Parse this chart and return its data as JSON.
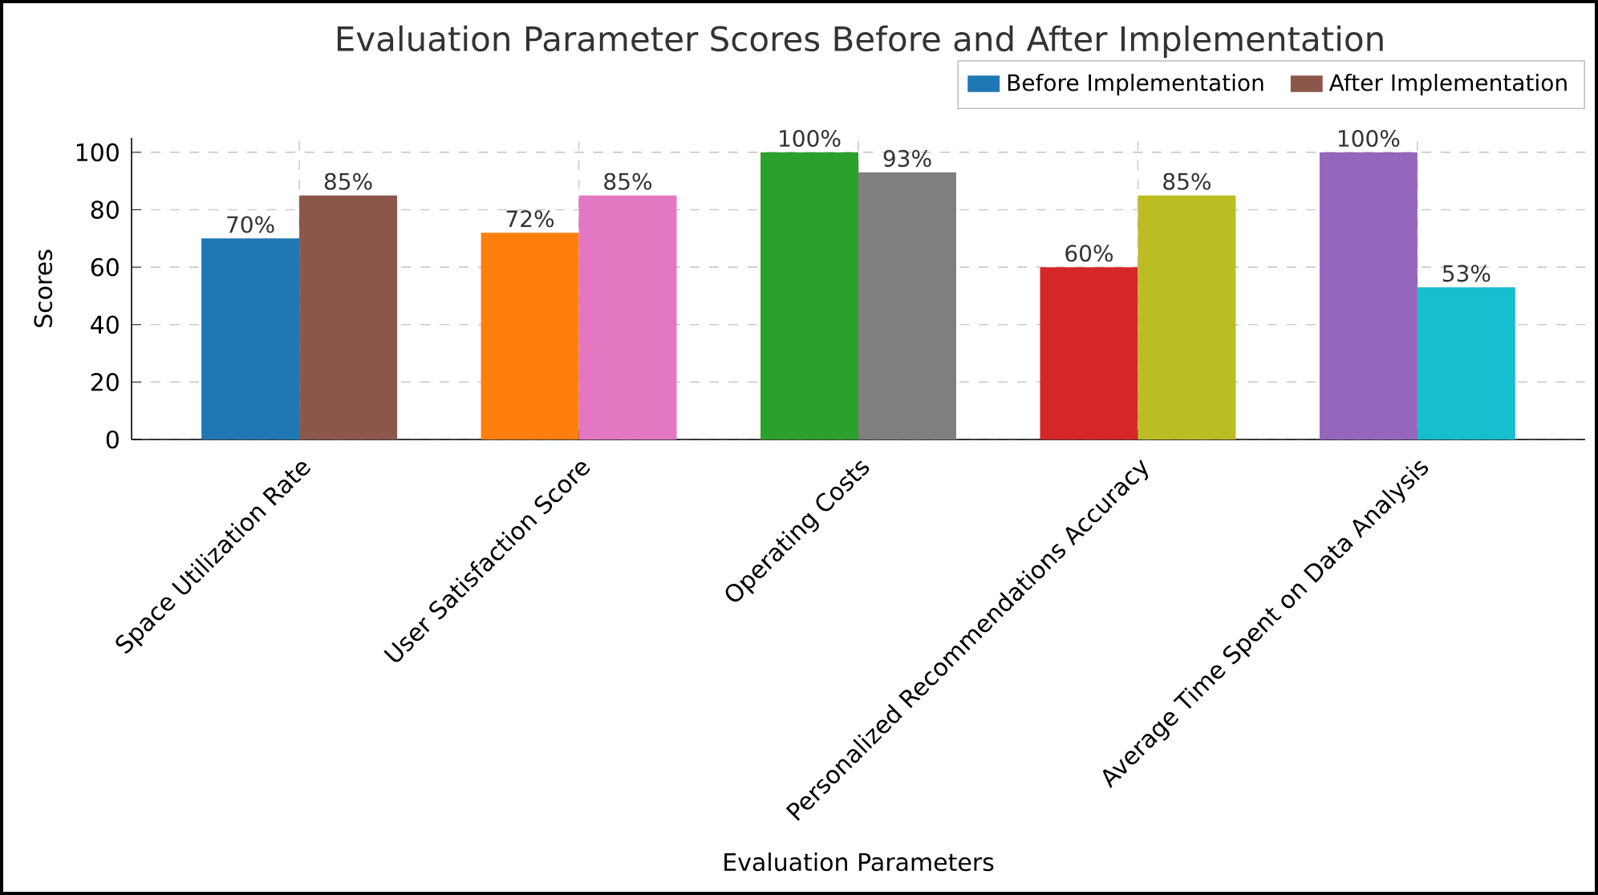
{
  "chart_data": {
    "type": "bar",
    "title": "Evaluation Parameter Scores Before and After Implementation",
    "xlabel": "Evaluation Parameters",
    "ylabel": "Scores",
    "categories": [
      "Space Utilization Rate",
      "User Satisfaction Score",
      "Operating Costs",
      "Personalized Recommendations Accuracy",
      "Average Time Spent on Data Analysis"
    ],
    "series": [
      {
        "name": "Before Implementation",
        "color": "#1f77b4",
        "colors": [
          "#1f77b4",
          "#ff7f0e",
          "#2ca02c",
          "#d62728",
          "#9467bd"
        ],
        "values": [
          70,
          72,
          100,
          60,
          100
        ],
        "value_labels": [
          "70%",
          "72%",
          "100%",
          "60%",
          "100%"
        ]
      },
      {
        "name": "After Implementation",
        "color": "#8c564b",
        "colors": [
          "#8c564b",
          "#e377c2",
          "#7f7f7f",
          "#bcbd22",
          "#17becf"
        ],
        "values": [
          85,
          85,
          93,
          85,
          53
        ],
        "value_labels": [
          "85%",
          "85%",
          "93%",
          "85%",
          "53%"
        ]
      }
    ],
    "ylim": [
      0,
      105
    ],
    "yticks": [
      0,
      20,
      40,
      60,
      80,
      100
    ],
    "grid": true,
    "legend": "top right"
  }
}
